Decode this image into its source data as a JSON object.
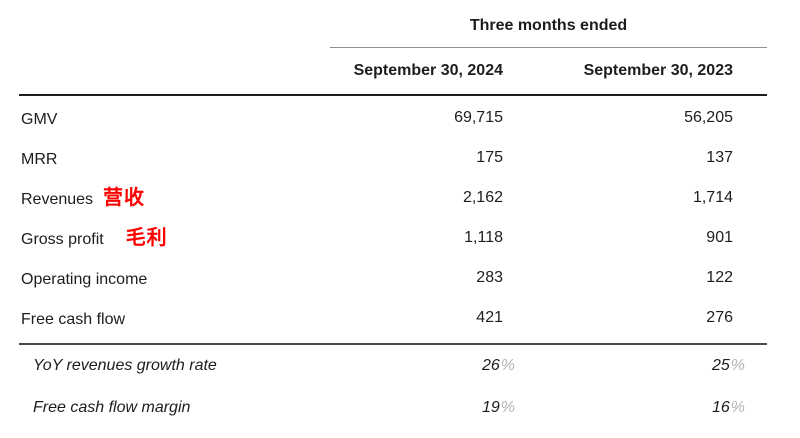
{
  "table": {
    "group_header": "Three months ended",
    "columns": [
      "September 30, 2024",
      "September 30, 2023"
    ],
    "rows": [
      {
        "label": "GMV",
        "annotation": "",
        "v1": "69,715",
        "v2": "56,205"
      },
      {
        "label": "MRR",
        "annotation": "",
        "v1": "175",
        "v2": "137"
      },
      {
        "label": "Revenues",
        "annotation": "营收",
        "v1": "2,162",
        "v2": "1,714"
      },
      {
        "label": "Gross profit",
        "annotation": "毛利",
        "v1": "1,118",
        "v2": "901"
      },
      {
        "label": "Operating income",
        "annotation": "",
        "v1": "283",
        "v2": "122"
      },
      {
        "label": "Free cash flow",
        "annotation": "",
        "v1": "421",
        "v2": "276"
      }
    ],
    "ratio_rows": [
      {
        "label": "YoY revenues growth rate",
        "v1": "26",
        "v2": "25",
        "unit": "%"
      },
      {
        "label": "Free cash flow margin",
        "v1": "19",
        "v2": "16",
        "unit": "%"
      }
    ]
  },
  "colors": {
    "annotation_red": "#fe0000",
    "percent_gray": "#b4b4b4",
    "rule_dark": "#1e1e1e",
    "rule_mid": "#4a4a4a",
    "rule_light": "#8f8f8f",
    "text": "#1d1d1d"
  }
}
